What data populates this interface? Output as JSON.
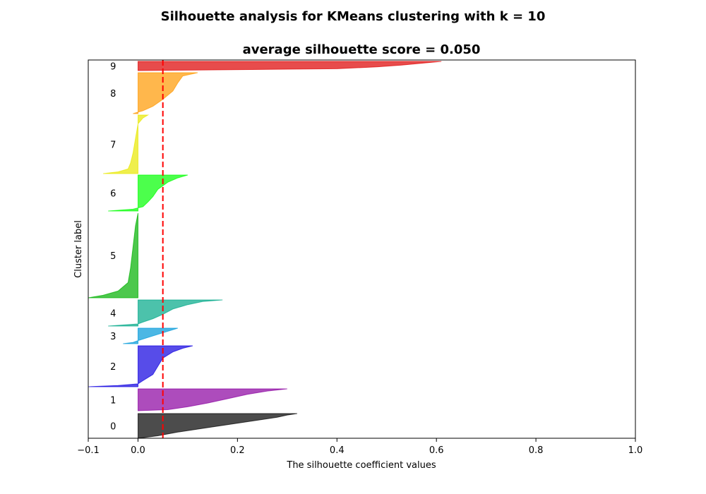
{
  "chart_data": {
    "type": "area",
    "suptitle": "Silhouette analysis for KMeans clustering with k = 10",
    "title": "average silhouette score = 0.050",
    "xlabel": "The silhouette coefficient values",
    "ylabel": "Cluster label",
    "xlim": [
      -0.1,
      1.0
    ],
    "xticks": [
      -0.1,
      0.0,
      0.2,
      0.4,
      0.6,
      0.8,
      1.0
    ],
    "xtick_labels": [
      "−0.1",
      "0.0",
      "0.2",
      "0.4",
      "0.6",
      "0.8",
      "1.0"
    ],
    "average_score": 0.05,
    "average_line_color": "#ff0000",
    "grid": false,
    "clusters": [
      {
        "label": "0",
        "color": "#000000",
        "max": 0.32,
        "min": 0.0,
        "profile": [
          [
            0,
            0.32
          ],
          [
            0.06,
            0.3
          ],
          [
            0.15,
            0.28
          ],
          [
            0.3,
            0.23
          ],
          [
            0.45,
            0.18
          ],
          [
            0.6,
            0.13
          ],
          [
            0.75,
            0.08
          ],
          [
            0.9,
            0.04
          ],
          [
            1,
            0.0
          ]
        ]
      },
      {
        "label": "1",
        "color": "#8a00a0",
        "max": 0.3,
        "min": 0.0,
        "profile": [
          [
            0,
            0.3
          ],
          [
            0.1,
            0.26
          ],
          [
            0.25,
            0.22
          ],
          [
            0.45,
            0.18
          ],
          [
            0.65,
            0.14
          ],
          [
            0.82,
            0.1
          ],
          [
            0.95,
            0.06
          ],
          [
            1,
            0.0
          ]
        ]
      },
      {
        "label": "2",
        "color": "#0f00e0",
        "max": 0.11,
        "min": -0.1,
        "profile": [
          [
            0,
            0.11
          ],
          [
            0.06,
            0.09
          ],
          [
            0.15,
            0.07
          ],
          [
            0.3,
            0.05
          ],
          [
            0.5,
            0.04
          ],
          [
            0.7,
            0.03
          ],
          [
            0.85,
            0.01
          ],
          [
            0.93,
            0.0
          ],
          [
            0.97,
            -0.04
          ],
          [
            1,
            -0.1
          ]
        ]
      },
      {
        "label": "3",
        "color": "#0098d8",
        "max": 0.08,
        "min": -0.03,
        "profile": [
          [
            0,
            0.08
          ],
          [
            0.2,
            0.06
          ],
          [
            0.4,
            0.04
          ],
          [
            0.6,
            0.02
          ],
          [
            0.8,
            0.0
          ],
          [
            0.92,
            -0.01
          ],
          [
            1,
            -0.03
          ]
        ]
      },
      {
        "label": "4",
        "color": "#00a888",
        "max": 0.17,
        "min": -0.06,
        "profile": [
          [
            0,
            0.17
          ],
          [
            0.06,
            0.13
          ],
          [
            0.18,
            0.1
          ],
          [
            0.35,
            0.07
          ],
          [
            0.55,
            0.05
          ],
          [
            0.72,
            0.03
          ],
          [
            0.85,
            0.01
          ],
          [
            0.92,
            0.0
          ],
          [
            1,
            -0.06
          ]
        ]
      },
      {
        "label": "5",
        "color": "#00b000",
        "max": 0.0,
        "min": -0.1,
        "profile": [
          [
            0,
            0.0
          ],
          [
            0.15,
            -0.005
          ],
          [
            0.4,
            -0.01
          ],
          [
            0.65,
            -0.015
          ],
          [
            0.82,
            -0.02
          ],
          [
            0.92,
            -0.04
          ],
          [
            0.97,
            -0.07
          ],
          [
            1,
            -0.1
          ]
        ]
      },
      {
        "label": "6",
        "color": "#00ff00",
        "max": 0.1,
        "min": -0.06,
        "profile": [
          [
            0,
            0.1
          ],
          [
            0.08,
            0.08
          ],
          [
            0.2,
            0.06
          ],
          [
            0.4,
            0.04
          ],
          [
            0.6,
            0.03
          ],
          [
            0.75,
            0.02
          ],
          [
            0.88,
            0.01
          ],
          [
            0.95,
            -0.01
          ],
          [
            1,
            -0.06
          ]
        ]
      },
      {
        "label": "7",
        "color": "#e8e800",
        "max": 0.02,
        "min": -0.07,
        "profile": [
          [
            0,
            0.02
          ],
          [
            0.05,
            0.01
          ],
          [
            0.15,
            0.0
          ],
          [
            0.4,
            -0.005
          ],
          [
            0.65,
            -0.01
          ],
          [
            0.82,
            -0.015
          ],
          [
            0.92,
            -0.02
          ],
          [
            0.97,
            -0.04
          ],
          [
            1,
            -0.07
          ]
        ]
      },
      {
        "label": "8",
        "color": "#ff9900",
        "max": 0.12,
        "min": -0.01,
        "profile": [
          [
            0,
            0.12
          ],
          [
            0.08,
            0.09
          ],
          [
            0.25,
            0.08
          ],
          [
            0.45,
            0.07
          ],
          [
            0.65,
            0.05
          ],
          [
            0.82,
            0.03
          ],
          [
            0.93,
            0.01
          ],
          [
            1,
            -0.01
          ]
        ]
      },
      {
        "label": "9",
        "color": "#dd0000",
        "max": 0.61,
        "min": 0.0,
        "profile": [
          [
            0,
            0.61
          ],
          [
            0.2,
            0.57
          ],
          [
            0.4,
            0.53
          ],
          [
            0.6,
            0.48
          ],
          [
            0.8,
            0.4
          ],
          [
            1,
            0.0
          ]
        ]
      }
    ]
  }
}
